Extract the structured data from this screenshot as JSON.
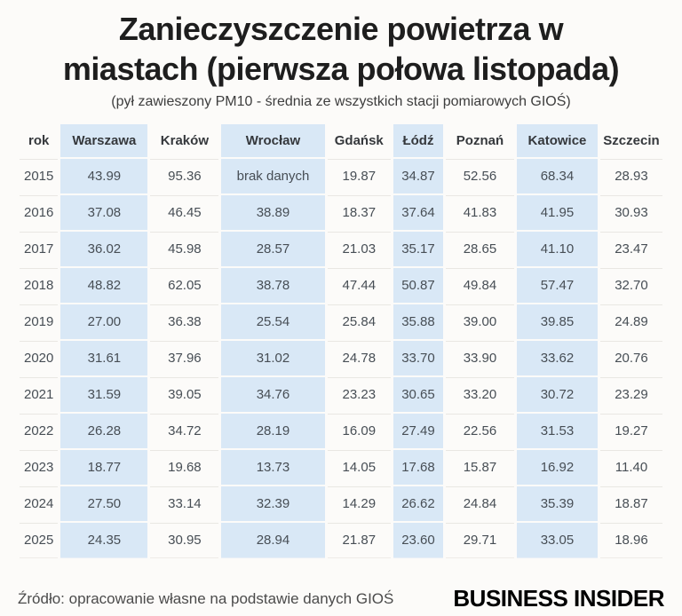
{
  "header": {
    "title": "Zanieczyszczenie powietrza w miastach (pierwsza połowa listopada)",
    "title_line1": "Zanieczyszczenie powietrza w",
    "title_line2": "miastach (pierwsza połowa listopada)",
    "subtitle": "(pył zawieszony PM10 - średnia ze wszystkich stacji pomiarowych GIOŚ)"
  },
  "table": {
    "highlight_columns": [
      1,
      3,
      5,
      7
    ],
    "highlight_color": "#d9e8f6",
    "no_data_label": "brak danych"
  },
  "footer": {
    "source": "Źródło: opracowanie własne na podstawie danych GIOŚ",
    "brand": "BUSINESS INSIDER"
  },
  "chart_data": {
    "type": "table",
    "title": "Zanieczyszczenie powietrza w miastach (pierwsza połowa listopada)",
    "subtitle": "(pył zawieszony PM10 - średnia ze wszystkich stacji pomiarowych GIOŚ)",
    "columns": [
      "rok",
      "Warszawa",
      "Kraków",
      "Wrocław",
      "Gdańsk",
      "Łódź",
      "Poznań",
      "Katowice",
      "Szczecin"
    ],
    "highlighted_columns": [
      "Warszawa",
      "Wrocław",
      "Łódź",
      "Katowice"
    ],
    "rows": [
      [
        "2015",
        "43.99",
        "95.36",
        "brak danych",
        "19.87",
        "34.87",
        "52.56",
        "68.34",
        "28.93"
      ],
      [
        "2016",
        "37.08",
        "46.45",
        "38.89",
        "18.37",
        "37.64",
        "41.83",
        "41.95",
        "30.93"
      ],
      [
        "2017",
        "36.02",
        "45.98",
        "28.57",
        "21.03",
        "35.17",
        "28.65",
        "41.10",
        "23.47"
      ],
      [
        "2018",
        "48.82",
        "62.05",
        "38.78",
        "47.44",
        "50.87",
        "49.84",
        "57.47",
        "32.70"
      ],
      [
        "2019",
        "27.00",
        "36.38",
        "25.54",
        "25.84",
        "35.88",
        "39.00",
        "39.85",
        "24.89"
      ],
      [
        "2020",
        "31.61",
        "37.96",
        "31.02",
        "24.78",
        "33.70",
        "33.90",
        "33.62",
        "20.76"
      ],
      [
        "2021",
        "31.59",
        "39.05",
        "34.76",
        "23.23",
        "30.65",
        "33.20",
        "30.72",
        "23.29"
      ],
      [
        "2022",
        "26.28",
        "34.72",
        "28.19",
        "16.09",
        "27.49",
        "22.56",
        "31.53",
        "19.27"
      ],
      [
        "2023",
        "18.77",
        "19.68",
        "13.73",
        "14.05",
        "17.68",
        "15.87",
        "16.92",
        "11.40"
      ],
      [
        "2024",
        "27.50",
        "33.14",
        "32.39",
        "14.29",
        "26.62",
        "24.84",
        "35.39",
        "18.87"
      ],
      [
        "2025",
        "24.35",
        "30.95",
        "28.94",
        "21.87",
        "23.60",
        "29.71",
        "33.05",
        "18.96"
      ]
    ],
    "source": "Źródło: opracowanie własne na podstawie danych GIOŚ"
  }
}
